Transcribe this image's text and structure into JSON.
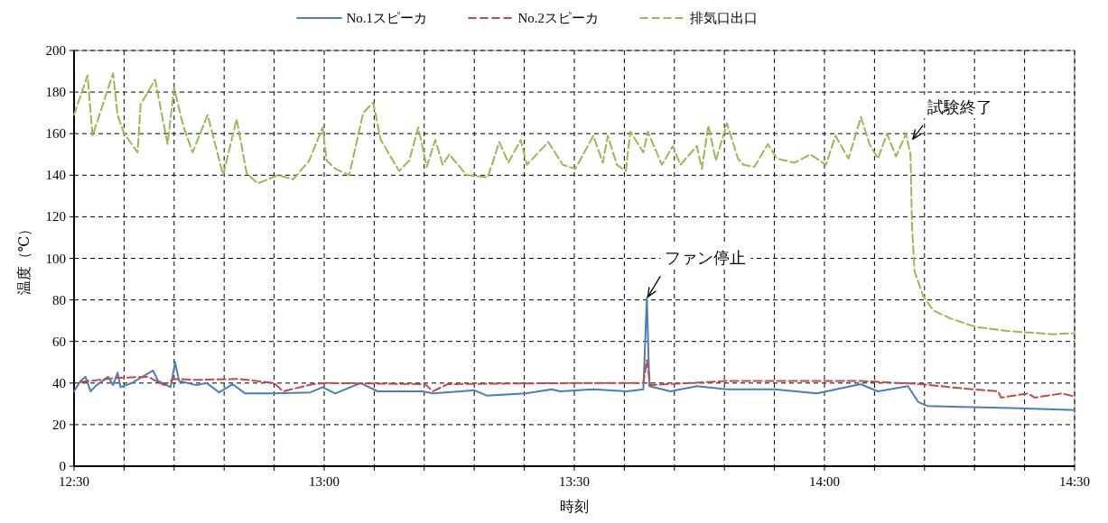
{
  "chart_data": {
    "type": "line",
    "xlabel": "時刻",
    "ylabel": "温度（℃）",
    "xlim": [
      12.5,
      14.5
    ],
    "xticks": [
      {
        "value": 12.5,
        "label": "12:30"
      },
      {
        "value": 12.6,
        "label": null
      },
      {
        "value": 12.7,
        "label": null
      },
      {
        "value": 12.8,
        "label": null
      },
      {
        "value": 12.9,
        "label": null
      },
      {
        "value": 13,
        "label": "13:00"
      },
      {
        "value": 13.1,
        "label": null
      },
      {
        "value": 13.2,
        "label": null
      },
      {
        "value": 13.3,
        "label": null
      },
      {
        "value": 13.4,
        "label": null
      },
      {
        "value": 13.5,
        "label": "13:30"
      },
      {
        "value": 13.6,
        "label": null
      },
      {
        "value": 13.7,
        "label": null
      },
      {
        "value": 13.8,
        "label": null
      },
      {
        "value": 13.9,
        "label": null
      },
      {
        "value": 14,
        "label": "14:00"
      },
      {
        "value": 14.1,
        "label": null
      },
      {
        "value": 14.2,
        "label": null
      },
      {
        "value": 14.3,
        "label": null
      },
      {
        "value": 14.4,
        "label": null
      },
      {
        "value": 14.5,
        "label": "14:30"
      }
    ],
    "ylim": [
      0,
      200
    ],
    "yticks": [
      0,
      20,
      40,
      60,
      80,
      100,
      120,
      140,
      160,
      180,
      200
    ],
    "grid": true,
    "legend": "top",
    "marker": "none",
    "annotations": [
      {
        "text": "ファン停止",
        "x": 13.645,
        "y": 81
      },
      {
        "text": "試験終了",
        "x": 14.175,
        "y": 157
      }
    ],
    "series": [
      {
        "name": "No.1スピーカ",
        "color": "#4a7ebb",
        "line_style": "solid",
        "x": [
          12.5,
          12.513,
          12.523,
          12.533,
          12.545,
          12.568,
          12.578,
          12.587,
          12.593,
          12.615,
          12.658,
          12.668,
          12.693,
          12.702,
          12.71,
          12.745,
          12.765,
          12.79,
          12.817,
          12.842,
          12.9,
          12.972,
          12.997,
          13.022,
          13.073,
          13.107,
          13.197,
          13.217,
          13.3,
          13.325,
          13.403,
          13.455,
          13.472,
          13.538,
          13.605,
          13.638,
          13.645,
          13.65,
          13.692,
          13.745,
          13.805,
          13.9,
          13.985,
          14.072,
          14.107,
          14.167,
          14.187,
          14.205,
          14.273,
          14.373,
          14.5
        ],
        "values": [
          36,
          41,
          43,
          36,
          39,
          43,
          39,
          45,
          38,
          40,
          46,
          41,
          38,
          50,
          41,
          39,
          40,
          35.5,
          39.5,
          35,
          35,
          35.5,
          38,
          35,
          40,
          36,
          36,
          35,
          36.5,
          34,
          35,
          37,
          36,
          37,
          36,
          37,
          81,
          38.5,
          36,
          38.5,
          37,
          37,
          35,
          39.5,
          36,
          38.5,
          31,
          29,
          28.5,
          28,
          27
        ]
      },
      {
        "name": "No.2スピーカ",
        "color": "#be4b48",
        "line_style": "dashed",
        "x": [
          12.513,
          12.585,
          12.648,
          12.68,
          12.7,
          12.745,
          12.828,
          12.9,
          12.918,
          12.977,
          13.003,
          13.202,
          13.217,
          13.247,
          13.493,
          13.638,
          13.645,
          13.652,
          13.805,
          14.072,
          14.193,
          14.273,
          14.347,
          14.353,
          14.407,
          14.42,
          14.475,
          14.5
        ],
        "values": [
          40.5,
          42.5,
          43,
          39,
          42,
          41.5,
          42,
          40,
          36,
          39.5,
          40,
          39.5,
          36,
          39.5,
          40,
          40,
          51,
          39,
          41,
          41,
          39.5,
          37.5,
          36,
          33,
          35,
          33,
          35,
          33.5
        ]
      },
      {
        "name": "排気口出口",
        "color": "#98b954",
        "line_style": "dashed",
        "x": [
          12.5,
          12.527,
          12.537,
          12.578,
          12.587,
          12.6,
          12.627,
          12.633,
          12.662,
          12.687,
          12.7,
          12.718,
          12.737,
          12.767,
          12.798,
          12.825,
          12.845,
          12.867,
          12.908,
          12.938,
          12.97,
          12.997,
          13.005,
          13.023,
          13.05,
          13.078,
          13.098,
          13.113,
          13.15,
          13.17,
          13.188,
          13.205,
          13.222,
          13.237,
          13.25,
          13.285,
          13.327,
          13.35,
          13.368,
          13.393,
          13.405,
          13.448,
          13.477,
          13.502,
          13.538,
          13.557,
          13.567,
          13.585,
          13.603,
          13.612,
          13.638,
          13.647,
          13.675,
          13.697,
          13.712,
          13.745,
          13.755,
          13.768,
          13.783,
          13.805,
          13.827,
          13.838,
          13.86,
          13.887,
          13.905,
          13.94,
          13.972,
          14.003,
          14.022,
          14.048,
          14.073,
          14.09,
          14.107,
          14.125,
          14.143,
          14.163,
          14.172,
          14.175,
          14.18,
          14.197,
          14.217,
          14.253,
          14.302,
          14.368,
          14.458,
          14.5
        ],
        "values": [
          169,
          188,
          159,
          189,
          169,
          160,
          151,
          174,
          186,
          155,
          182,
          164,
          151,
          169,
          140,
          167,
          141,
          136,
          140,
          138,
          147,
          163,
          147,
          143,
          140,
          170,
          175,
          157,
          142,
          147,
          163,
          144,
          157,
          145,
          150,
          140,
          139,
          156,
          146,
          157,
          145,
          156,
          145,
          143,
          159,
          146,
          159,
          145,
          142,
          161,
          151,
          161,
          145,
          154,
          145,
          154,
          143,
          164,
          147,
          165,
          148,
          145,
          144,
          155,
          148,
          146,
          150,
          145,
          159,
          148,
          168,
          155,
          148,
          160,
          149,
          160,
          150,
          116,
          94,
          82,
          75,
          71,
          67,
          65,
          63.5,
          64
        ]
      }
    ]
  }
}
